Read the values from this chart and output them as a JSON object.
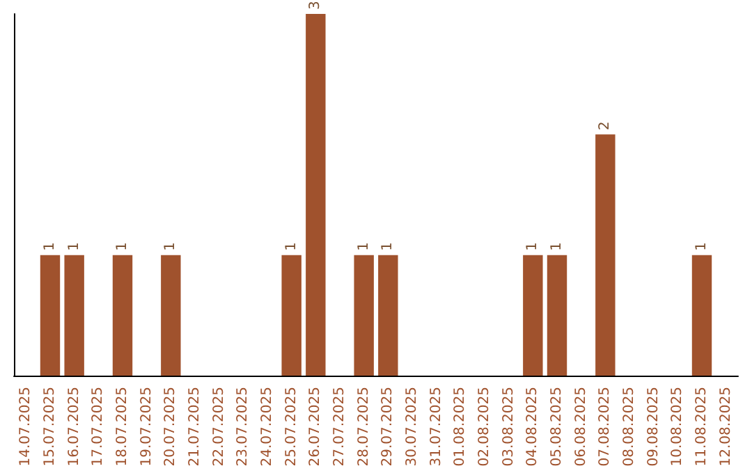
{
  "chart_data": {
    "type": "bar",
    "categories": [
      "14.07.2025",
      "15.07.2025",
      "16.07.2025",
      "17.07.2025",
      "18.07.2025",
      "19.07.2025",
      "20.07.2025",
      "21.07.2025",
      "22.07.2025",
      "23.07.2025",
      "24.07.2025",
      "25.07.2025",
      "26.07.2025",
      "27.07.2025",
      "28.07.2025",
      "29.07.2025",
      "30.07.2025",
      "31.07.2025",
      "01.08.2025",
      "02.08.2025",
      "03.08.2025",
      "04.08.2025",
      "05.08.2025",
      "06.08.2025",
      "07.08.2025",
      "08.08.2025",
      "09.08.2025",
      "10.08.2025",
      "11.08.2025",
      "12.08.2025"
    ],
    "values": [
      0,
      1,
      1,
      0,
      1,
      0,
      1,
      0,
      0,
      0,
      0,
      1,
      3,
      0,
      1,
      1,
      0,
      0,
      0,
      0,
      0,
      1,
      1,
      0,
      2,
      0,
      0,
      0,
      1,
      0
    ],
    "value_labels": [
      null,
      "1",
      "1",
      null,
      "1",
      null,
      "1",
      null,
      null,
      null,
      null,
      "1",
      "3",
      null,
      "1",
      "1",
      null,
      null,
      null,
      null,
      null,
      "1",
      "1",
      null,
      "2",
      null,
      null,
      null,
      "1",
      null
    ],
    "color": "#a0522d",
    "tick_labels": "x"
  }
}
